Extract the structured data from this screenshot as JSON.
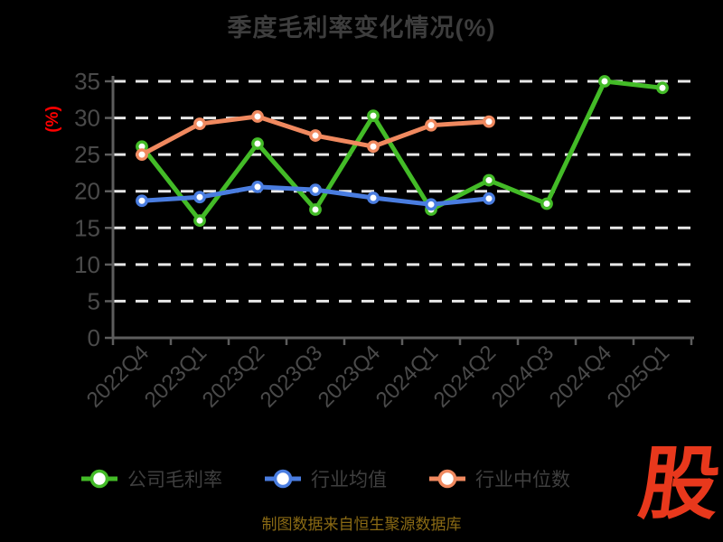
{
  "page": {
    "background": "#000000"
  },
  "title": {
    "text": "季度毛利率变化情况(%)",
    "color": "#3d3d3d"
  },
  "y_axis_unit_label": {
    "text": "(%)",
    "color": "#ff0000"
  },
  "footer": {
    "source_text": "制图数据来自恒生聚源数据库",
    "color": "#8a6a14"
  },
  "logo": {
    "char": "股",
    "color": "#e8381c"
  },
  "axis_style": {
    "tick_label_color": "#4a4a4a",
    "axis_line_color": "#5d5d5d",
    "grid_line_color": "#e8e8e8"
  },
  "chart_data": {
    "type": "line",
    "title": "季度毛利率变化情况(%)",
    "xlabel": "",
    "ylabel": "(%)",
    "ylim": [
      0,
      35
    ],
    "ytick_step": 5,
    "grid": "horizontal dashed lines on",
    "legend_position": "bottom",
    "marker_style": "circle, white fill, colored ring",
    "categories": [
      "2022Q4",
      "2023Q1",
      "2023Q2",
      "2023Q3",
      "2023Q4",
      "2024Q1",
      "2024Q2",
      "2024Q3",
      "2024Q4",
      "2025Q1"
    ],
    "series": [
      {
        "name": "公司毛利率",
        "key": "company-gross-margin",
        "color": "#43bb27",
        "values": [
          26.1,
          16.0,
          26.5,
          17.5,
          30.3,
          17.5,
          21.5,
          18.3,
          35.0,
          34.1
        ]
      },
      {
        "name": "行业均值",
        "key": "industry-average",
        "color": "#4a7de0",
        "values": [
          18.7,
          19.2,
          20.6,
          20.2,
          19.1,
          18.2,
          19.0,
          null,
          null,
          null
        ]
      },
      {
        "name": "行业中位数",
        "key": "industry-median",
        "color": "#f0895f",
        "values": [
          25.0,
          29.2,
          30.2,
          27.6,
          26.1,
          29.0,
          29.5,
          null,
          null,
          null
        ]
      }
    ]
  }
}
